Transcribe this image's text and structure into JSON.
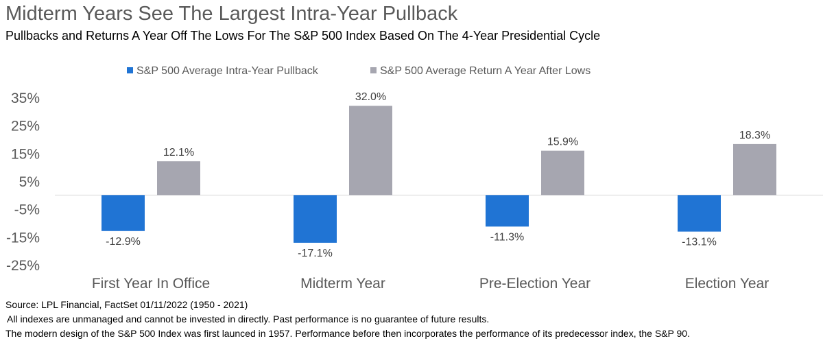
{
  "title": "Midterm Years See The Largest Intra-Year Pullback",
  "subtitle": "Pullbacks and Returns A Year Off The Lows For The S&P 500 Index Based On The 4-Year Presidential Cycle",
  "colors": {
    "pullback": "#2074d4",
    "return": "#a6a6b0",
    "axis": "#d9d9d9",
    "text": "#595959"
  },
  "chart_data": {
    "type": "bar",
    "categories": [
      "First Year In Office",
      "Midterm Year",
      "Pre-Election Year",
      "Election Year"
    ],
    "series": [
      {
        "name": "S&P 500 Average Intra-Year Pullback",
        "values": [
          -12.9,
          -17.1,
          -11.3,
          -13.1
        ],
        "labels": [
          "-12.9%",
          "-17.1%",
          "-11.3%",
          "-13.1%"
        ]
      },
      {
        "name": "S&P 500 Average Return A Year After Lows",
        "values": [
          12.1,
          32.0,
          15.9,
          18.3
        ],
        "labels": [
          "12.1%",
          "32.0%",
          "15.9%",
          "18.3%"
        ]
      }
    ],
    "ylim": [
      -25,
      35
    ],
    "yticks": [
      35,
      25,
      15,
      5,
      -5,
      -15,
      -25
    ],
    "ytick_labels": [
      "35%",
      "25%",
      "15%",
      "5%",
      "-5%",
      "-15%",
      "-25%"
    ],
    "legend_position": "top-center",
    "grid": false
  },
  "footnotes": {
    "source": "Source: LPL Financial, FactSet 01/11/2022 (1950 - 2021)",
    "disclaimer": "All indexes are unmanaged and cannot be invested in directly. Past performance is no guarantee of future results.",
    "history": "The modern design of the S&P 500 Index was first launced in 1957. Performance before then incorporates the performance of its predecessor index, the S&P 90."
  }
}
